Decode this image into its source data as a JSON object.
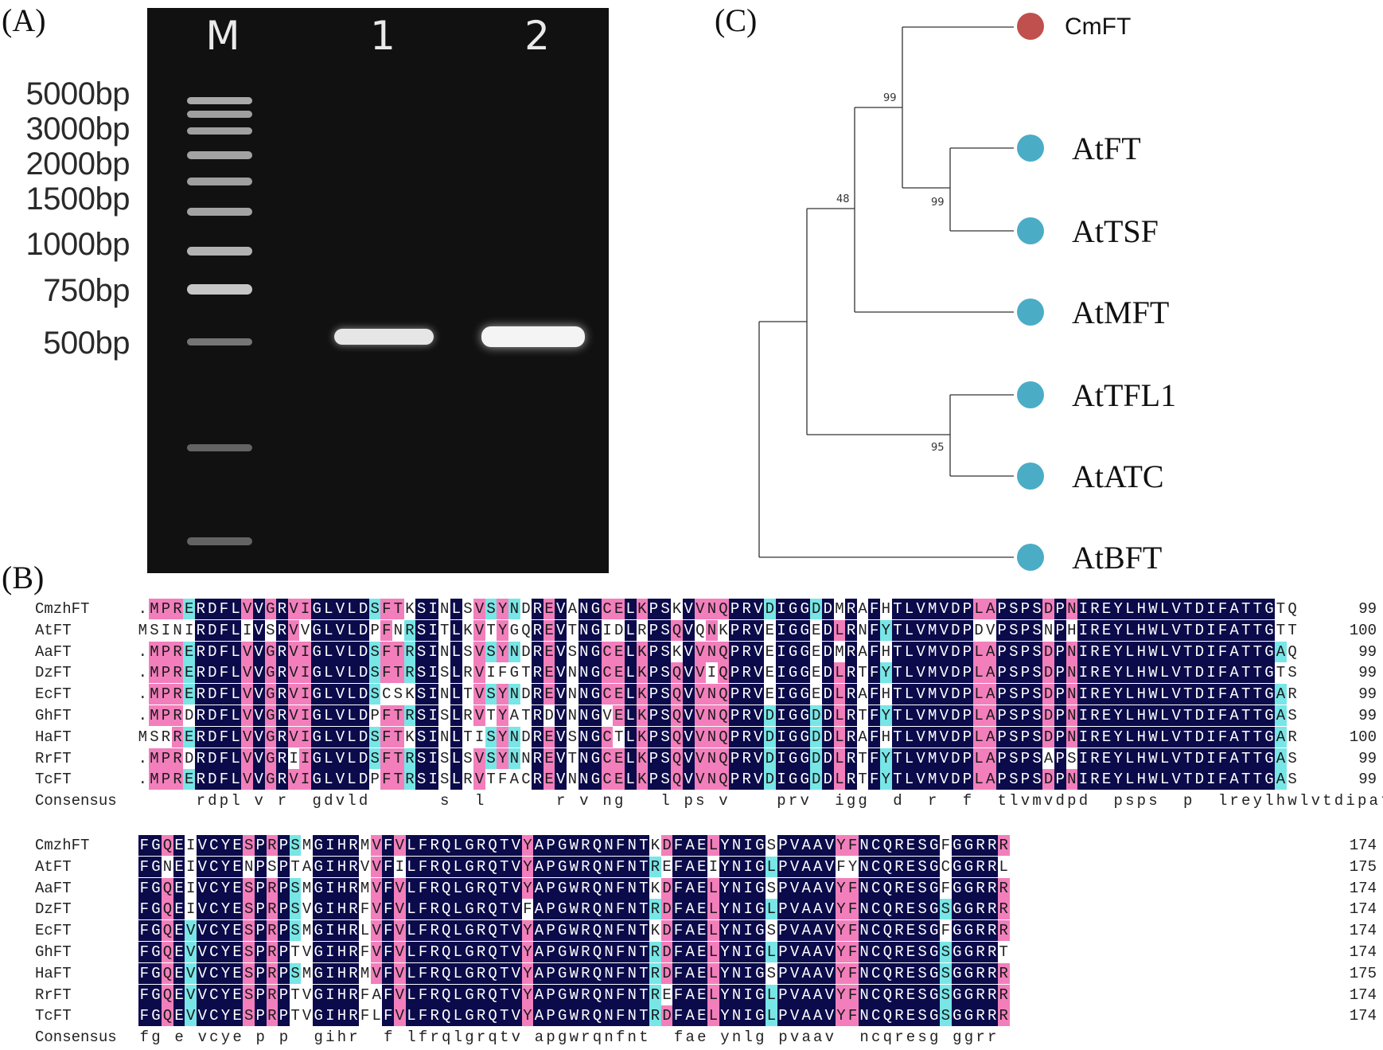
{
  "panels": {
    "a": "(A)",
    "b": "(B)",
    "c": "(C)"
  },
  "gel": {
    "lanes": [
      "M",
      "1",
      "2"
    ],
    "ladder": [
      "5000bp",
      "3000bp",
      "2000bp",
      "1500bp",
      "1000bp",
      "750bp",
      "500bp"
    ]
  },
  "tree": {
    "taxa": [
      {
        "name": "CmFT",
        "color": "#c0504d"
      },
      {
        "name": "AtFT",
        "color": "#4bacc6"
      },
      {
        "name": "AtTSF",
        "color": "#4bacc6"
      },
      {
        "name": "AtMFT",
        "color": "#4bacc6"
      },
      {
        "name": "AtTFL1",
        "color": "#4bacc6"
      },
      {
        "name": "AtATC",
        "color": "#4bacc6"
      },
      {
        "name": "AtBFT",
        "color": "#4bacc6"
      }
    ],
    "bootstrap": [
      "99",
      "99",
      "48",
      "95"
    ]
  },
  "alignment": {
    "blocks": [
      {
        "rows": [
          {
            "name": "CmzhFT",
            "seq": ".MPRERDFLVVGRVIGLVLDSFTKSINLSVSYNDREVANGCELKPSKVVNQPRVDIGGDDMRAFHTLVMVDPLAPSPSDPNIREYLHWLVTDIFATTGTQ",
            "num": "99"
          },
          {
            "name": "AtFT",
            "seq": "MSINIRDFLIVSRVVGLVLDPFNRSITLKVTYGQREVTNGIDLRPSQVQNKPRVEIGGEDLRNFYTLVMVDPDVPSPSNPHIREYLHWLVTDIFATTGTT",
            "num": "100"
          },
          {
            "name": "AaFT",
            "seq": ".MPRERDFLVVGRVIGLVLDSFTRSINLSVSYNDREVSNGCELKPSKVVNQPRVEIGGEDMRAFHTLVMVDPLAPSPSDPNIREYLHWLVTDIFATTGAQ",
            "num": "99"
          },
          {
            "name": "DzFT",
            "seq": ".MPRERDFLVVGRVIGLVLDSFTRSISLRVIFGTREVNNGCELKPSQVVIQPRVEIGGEDLRTFYTLVMVDPLAPSPSDPNIREYLHWLVTDIFATTGTS",
            "num": "99"
          },
          {
            "name": "EcFT",
            "seq": ".MPRERDFLVVGRVIGLVLDSCSKSINLTVSYNDREVNNGCELKPSQVVNQPRVEIGGEDLRAFHTLVMVDPLAPSPSDPNIREYLHWLVTDIFATTGAR",
            "num": "99"
          },
          {
            "name": "GhFT",
            "seq": ".MPRDRDFLVVGRVIGLVLDPFTRSISLRVTYATRDVNNGVELKPSQVVNQPRVDIGGDDLRTFYTLVMVDPLAPSPSDPNIREYLHWLVTDIFATTGAS",
            "num": "99"
          },
          {
            "name": "HaFT",
            "seq": "MSRRERDFLVVGRVIGLVLDSFTKSINLTISYNDREVSNGCTLKPSQVVNQPRVDIGGDDLRAFHTLVMVDPLAPSPSDPNIREYLHWLVTDIFATTGAR",
            "num": "100"
          },
          {
            "name": "RrFT",
            "seq": ".MPRDRDFLVVGRIIGLVLDSFTRSISLSVSYNNREVTNGCELKPSQVVNQPRVDIGGDDLRTFYTLVMVDPLAPSPSAPSIREYLHWLVTDIFATTGAS",
            "num": "99"
          },
          {
            "name": "TcFT",
            "seq": ".MPRERDFLVVGRVIGLVLDPFTRSISLRVTFACREVNNGCELKPSQVVNQPRVDIGGDDLRTFYTLVMVDPLAPSPSDPNIREYLHWLVTDIFATTGAS",
            "num": "99"
          }
        ],
        "consensus_label": "Consensus",
        "consensus": "     rdpl v r  gdvld      s  l      r v ng   l ps v    prv  igg  d  r  f  tlvmvdpd  psps  p  lreylhwlvtdipattg  "
      },
      {
        "rows": [
          {
            "name": "CmzhFT",
            "seq": "FGQEIVCYESPRPSMGIHRMVFVLFRQLGRQTVYAPGWRQNFNTKDFAELYNIGSPVAAVYFNCQRESGFGGRRR",
            "num": "174"
          },
          {
            "name": "AtFT",
            "seq": "FGNEIVCYENPSPTAGIHRVVFILFRQLGRQTVYAPGWRQNFNTREFAEIYNIGLPVAAVFYNCQRESGCGGRRL",
            "num": "175"
          },
          {
            "name": "AaFT",
            "seq": "FGQEIVCYESPRPSMGIHRMVFVLFRQLGRQTVYAPGWRQNFNTKDFAELYNIGSPVAAVYFNCQRESGFGGRRR",
            "num": "174"
          },
          {
            "name": "DzFT",
            "seq": "FGQEIVCYESPRPSVGIHRFVFVLFRQLGRQTVFAPGWRQNFNTRDFAELYNIGLPVAAVYFNCQRESGSGGRRR",
            "num": "174"
          },
          {
            "name": "EcFT",
            "seq": "FGQEVVCYESPRPSMGIHRLVFVLFRQLGRQTVYAPGWRQNFNTKDFAELYNIGSPVAAVYFNCQRESGFGGRRR",
            "num": "174"
          },
          {
            "name": "GhFT",
            "seq": "FGQEVVCYESPRPTVGIHRFVFVLFRQLGRQTVYAPGWRQNFNTRDFAELYNIGLPVAAVYFNCQRESGSGGRRT",
            "num": "174"
          },
          {
            "name": "HaFT",
            "seq": "FGQEVVCYESPRPSMGIHRMVFVLFRQLGRQTVYAPGWRQNFNTRDFAELYNIGSPVAAVYFNCQRESGSGGRRR",
            "num": "175"
          },
          {
            "name": "RrFT",
            "seq": "FGQEVVCYESPRPTVGIHRFAFVLFRQLGRQTVYAPGWRQNFNTREFAELYNIGLPVAAVYFNCQRESGSGGRRR",
            "num": "174"
          },
          {
            "name": "TcFT",
            "seq": "FGQEVVCYESPRPTVGIHRFLFVLFRQLGRQTVYAPGWRQNFNTRDFAELYNIGLPVAAVYFNCQRESGSGGRRR",
            "num": "174"
          }
        ],
        "consensus_label": "Consensus",
        "consensus": "fg e vcye p p  gihr  f lfrqlgrqtv apgwrqnfnt  fae ynlg pvaav  ncqresg ggrr "
      }
    ]
  }
}
